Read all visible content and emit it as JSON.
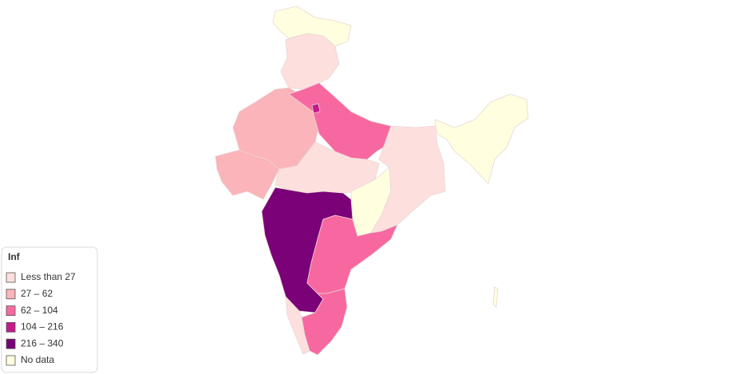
{
  "legend": {
    "title": "Inf",
    "items": [
      {
        "label": "Less than 27",
        "color": "#fde0dd"
      },
      {
        "label": "27 – 62",
        "color": "#fbb4b9"
      },
      {
        "label": "62 – 104",
        "color": "#f768a1"
      },
      {
        "label": "104 – 216",
        "color": "#c51b8a"
      },
      {
        "label": "216 – 340",
        "color": "#7a0177"
      },
      {
        "label": "No data",
        "color": "#ffffe0"
      }
    ]
  }
}
